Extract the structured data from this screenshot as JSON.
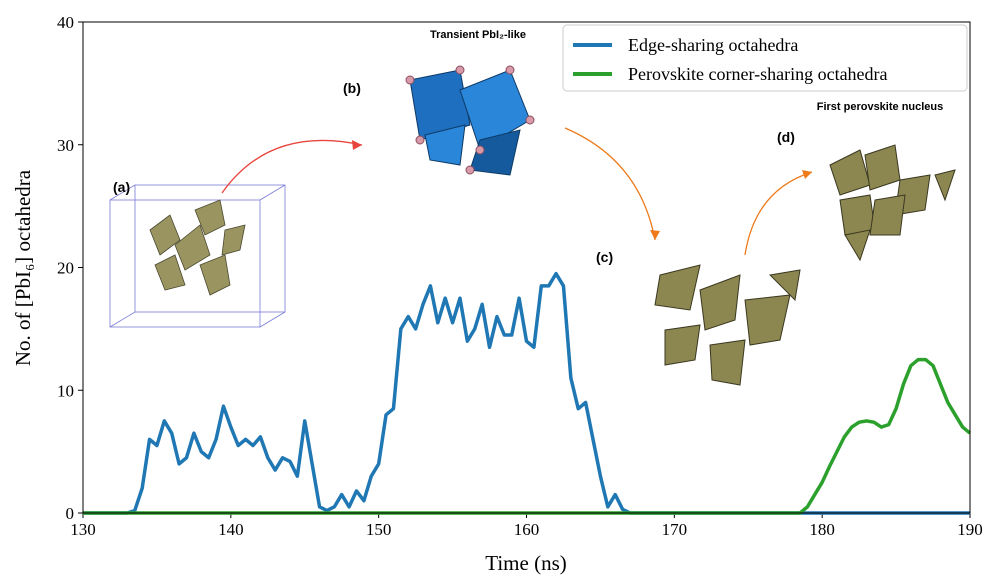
{
  "chart_data": {
    "type": "line",
    "x_label": "Time (ns)",
    "y_label": "No. of [PbI₆] octahedra",
    "x": [
      130,
      130.5,
      131,
      131.5,
      132,
      132.5,
      133,
      133.5,
      134,
      134.5,
      135,
      135.5,
      136,
      136.5,
      137,
      137.5,
      138,
      138.5,
      139,
      139.5,
      140,
      140.5,
      141,
      141.5,
      142,
      142.5,
      143,
      143.5,
      144,
      144.5,
      145,
      145.5,
      146,
      146.5,
      147,
      147.5,
      148,
      148.5,
      149,
      149.5,
      150,
      150.5,
      151,
      151.5,
      152,
      152.5,
      153,
      153.5,
      154,
      154.5,
      155,
      155.5,
      156,
      156.5,
      157,
      157.5,
      158,
      158.5,
      159,
      159.5,
      160,
      160.5,
      161,
      161.5,
      162,
      162.5,
      163,
      163.5,
      164,
      164.5,
      165,
      165.5,
      166,
      166.5,
      167,
      167.5,
      168,
      168.5,
      169,
      169.5,
      170,
      170.5,
      171,
      171.5,
      172,
      172.5,
      173,
      173.5,
      174,
      174.5,
      175,
      175.5,
      176,
      176.5,
      177,
      177.5,
      178,
      178.5,
      179,
      179.5,
      180,
      180.5,
      181,
      181.5,
      182,
      182.5,
      183,
      183.5,
      184,
      184.5,
      185,
      185.5,
      186,
      186.5,
      187,
      187.5,
      188,
      188.5,
      189,
      189.5,
      190
    ],
    "series": [
      {
        "name": "Edge-sharing octahedra",
        "color": "#1f77b4",
        "values": [
          0,
          0,
          0,
          0,
          0,
          0,
          0,
          0.2,
          2,
          6,
          5.5,
          7.5,
          6.5,
          4,
          4.5,
          6.5,
          5,
          4.5,
          6,
          8.7,
          7,
          5.5,
          6,
          5.5,
          6.2,
          4.5,
          3.5,
          4.5,
          4.2,
          3,
          7.5,
          4,
          0.5,
          0.2,
          0.5,
          1.5,
          0.5,
          1.8,
          1,
          3,
          4,
          8,
          8.5,
          15,
          16,
          15,
          17,
          18.5,
          15.5,
          17.5,
          15.5,
          17.5,
          14,
          15,
          17,
          13.5,
          16,
          14.5,
          14.5,
          17.5,
          14,
          13.5,
          18.5,
          18.5,
          19.5,
          18.5,
          11,
          8.5,
          9,
          6,
          3,
          0.5,
          1.5,
          0.3,
          0,
          0,
          0,
          0,
          0,
          0,
          0,
          0,
          0,
          0,
          0,
          0,
          0,
          0,
          0,
          0,
          0,
          0,
          0,
          0,
          0,
          0,
          0,
          0,
          0,
          0,
          0,
          0,
          0,
          0,
          0,
          0,
          0,
          0,
          0,
          0,
          0,
          0,
          0,
          0,
          0,
          0,
          0,
          0,
          0,
          0,
          0
        ]
      },
      {
        "name": "Perovskite corner-sharing octahedra",
        "color": "#2ca02c",
        "values": [
          0,
          0,
          0,
          0,
          0,
          0,
          0,
          0,
          0,
          0,
          0,
          0,
          0,
          0,
          0,
          0,
          0,
          0,
          0,
          0,
          0,
          0,
          0,
          0,
          0,
          0,
          0,
          0,
          0,
          0,
          0,
          0,
          0,
          0,
          0,
          0,
          0,
          0,
          0,
          0,
          0,
          0,
          0,
          0,
          0,
          0,
          0,
          0,
          0,
          0,
          0,
          0,
          0,
          0,
          0,
          0,
          0,
          0,
          0,
          0,
          0,
          0,
          0,
          0,
          0,
          0,
          0,
          0,
          0,
          0,
          0,
          0,
          0,
          0,
          0,
          0,
          0,
          0,
          0,
          0,
          0,
          0,
          0,
          0,
          0,
          0,
          0,
          0,
          0,
          0,
          0,
          0,
          0,
          0,
          0,
          0,
          0,
          0,
          0.5,
          1.5,
          2.5,
          3.8,
          5,
          6.2,
          7,
          7.4,
          7.5,
          7.4,
          7,
          7.2,
          8.5,
          10.5,
          12,
          12.5,
          12.5,
          12,
          10.5,
          9,
          8,
          7,
          6.5
        ]
      }
    ],
    "xlim": [
      130,
      190
    ],
    "xticks": [
      130,
      140,
      150,
      160,
      170,
      180,
      190
    ],
    "ylim": [
      0,
      40
    ],
    "yticks": [
      0,
      10,
      20,
      30,
      40
    ],
    "legend": "upper right",
    "annotations": [
      "(a)",
      "(b)",
      "(c)",
      "(d)",
      "Transient PbI₂-like",
      "First perovskite nucleus"
    ]
  }
}
